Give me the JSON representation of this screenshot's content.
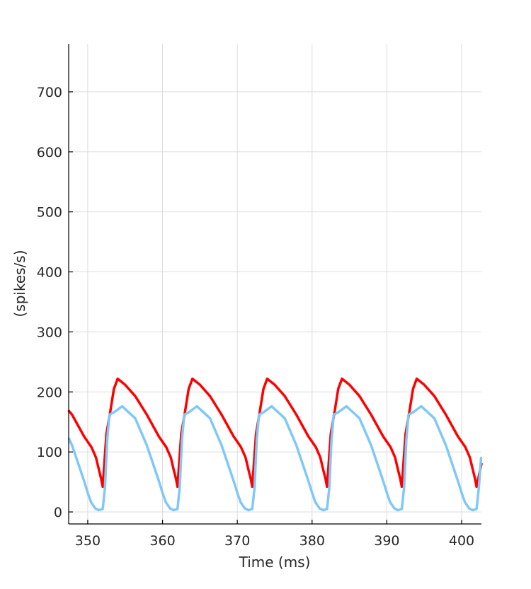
{
  "chart_data": {
    "type": "line",
    "title": "",
    "xlabel": "Time (ms)",
    "ylabel": "(spikes/s)",
    "xlim": [
      347.45,
      402.65
    ],
    "ylim": [
      -20,
      780
    ],
    "grid": true,
    "xticks": [
      350,
      360,
      370,
      380,
      390,
      400
    ],
    "yticks": [
      0,
      100,
      200,
      300,
      400,
      500,
      600,
      700
    ],
    "series": [
      {
        "color": "#ff0000",
        "points": [
          [
            347.5,
            168
          ],
          [
            347.9,
            162
          ],
          [
            349.5,
            126
          ],
          [
            350,
            117
          ],
          [
            350.5,
            108
          ],
          [
            351.1,
            91
          ],
          [
            351.5,
            70
          ],
          [
            351.8,
            55
          ],
          [
            352,
            42
          ],
          [
            352.5,
            130
          ],
          [
            353,
            166
          ],
          [
            353.5,
            205
          ],
          [
            354,
            222
          ],
          [
            355,
            212
          ],
          [
            356.35,
            193
          ],
          [
            357.9,
            162
          ],
          [
            359.5,
            126
          ],
          [
            360,
            117
          ],
          [
            360.5,
            108
          ],
          [
            361.1,
            91
          ],
          [
            361.5,
            70
          ],
          [
            361.8,
            55
          ],
          [
            362,
            42
          ],
          [
            362.5,
            130
          ],
          [
            363,
            166
          ],
          [
            363.5,
            205
          ],
          [
            364,
            222
          ],
          [
            365,
            212
          ],
          [
            366.35,
            193
          ],
          [
            367.9,
            162
          ],
          [
            369.5,
            126
          ],
          [
            370,
            117
          ],
          [
            370.5,
            108
          ],
          [
            371.1,
            91
          ],
          [
            371.5,
            70
          ],
          [
            371.8,
            55
          ],
          [
            372,
            42
          ],
          [
            372.5,
            130
          ],
          [
            373,
            166
          ],
          [
            373.5,
            205
          ],
          [
            374,
            222
          ],
          [
            375,
            212
          ],
          [
            376.35,
            193
          ],
          [
            377.9,
            162
          ],
          [
            379.5,
            126
          ],
          [
            380,
            117
          ],
          [
            380.5,
            108
          ],
          [
            381.1,
            91
          ],
          [
            381.5,
            70
          ],
          [
            381.8,
            55
          ],
          [
            382,
            42
          ],
          [
            382.5,
            130
          ],
          [
            383,
            166
          ],
          [
            383.5,
            205
          ],
          [
            384,
            222
          ],
          [
            385,
            212
          ],
          [
            386.35,
            193
          ],
          [
            387.9,
            162
          ],
          [
            389.5,
            126
          ],
          [
            390,
            117
          ],
          [
            390.5,
            108
          ],
          [
            391.1,
            91
          ],
          [
            391.5,
            70
          ],
          [
            391.8,
            55
          ],
          [
            392,
            42
          ],
          [
            392.5,
            130
          ],
          [
            393,
            166
          ],
          [
            393.5,
            205
          ],
          [
            394,
            222
          ],
          [
            395,
            212
          ],
          [
            396.35,
            193
          ],
          [
            397.9,
            162
          ],
          [
            399.5,
            126
          ],
          [
            400,
            117
          ],
          [
            400.5,
            108
          ],
          [
            401.1,
            91
          ],
          [
            401.5,
            70
          ],
          [
            401.8,
            55
          ],
          [
            402,
            42
          ],
          [
            402.65,
            80
          ]
        ]
      },
      {
        "color": "#80c8f8",
        "points": [
          [
            347.5,
            122
          ],
          [
            347.9,
            111
          ],
          [
            349.5,
            52
          ],
          [
            350,
            32
          ],
          [
            350.45,
            16
          ],
          [
            351,
            6
          ],
          [
            351.5,
            3
          ],
          [
            352,
            5
          ],
          [
            352.3,
            40
          ],
          [
            352.6,
            120
          ],
          [
            352.9,
            162
          ],
          [
            353.5,
            166
          ],
          [
            354.6,
            176
          ],
          [
            356.35,
            156
          ],
          [
            357.9,
            111
          ],
          [
            359.5,
            52
          ],
          [
            360,
            32
          ],
          [
            360.45,
            16
          ],
          [
            361,
            6
          ],
          [
            361.5,
            3
          ],
          [
            362,
            5
          ],
          [
            362.3,
            40
          ],
          [
            362.6,
            120
          ],
          [
            362.9,
            162
          ],
          [
            363.5,
            166
          ],
          [
            364.6,
            176
          ],
          [
            366.35,
            156
          ],
          [
            367.9,
            111
          ],
          [
            369.5,
            52
          ],
          [
            370,
            32
          ],
          [
            370.45,
            16
          ],
          [
            371,
            6
          ],
          [
            371.5,
            3
          ],
          [
            372,
            5
          ],
          [
            372.3,
            40
          ],
          [
            372.6,
            120
          ],
          [
            372.9,
            162
          ],
          [
            373.5,
            166
          ],
          [
            374.6,
            176
          ],
          [
            376.35,
            156
          ],
          [
            377.9,
            111
          ],
          [
            379.5,
            52
          ],
          [
            380,
            32
          ],
          [
            380.45,
            16
          ],
          [
            381,
            6
          ],
          [
            381.5,
            3
          ],
          [
            382,
            5
          ],
          [
            382.3,
            40
          ],
          [
            382.6,
            120
          ],
          [
            382.9,
            162
          ],
          [
            383.5,
            166
          ],
          [
            384.6,
            176
          ],
          [
            386.35,
            156
          ],
          [
            387.9,
            111
          ],
          [
            389.5,
            52
          ],
          [
            390,
            32
          ],
          [
            390.45,
            16
          ],
          [
            391,
            6
          ],
          [
            391.5,
            3
          ],
          [
            392,
            5
          ],
          [
            392.3,
            40
          ],
          [
            392.6,
            120
          ],
          [
            392.9,
            162
          ],
          [
            393.5,
            166
          ],
          [
            394.6,
            176
          ],
          [
            396.35,
            156
          ],
          [
            397.9,
            111
          ],
          [
            399.5,
            52
          ],
          [
            400,
            32
          ],
          [
            400.45,
            16
          ],
          [
            401,
            6
          ],
          [
            401.5,
            3
          ],
          [
            402,
            5
          ],
          [
            402.3,
            40
          ],
          [
            402.6,
            90
          ]
        ]
      }
    ]
  }
}
